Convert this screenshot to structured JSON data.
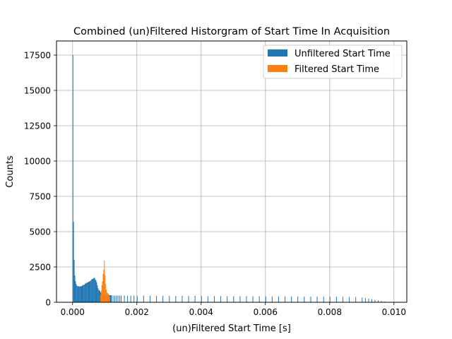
{
  "chart_data": {
    "type": "bar",
    "title": "Combined (un)Filtered Historgram of Start Time In Acquisition",
    "xlabel": "(un)Filtered Start Time [s]",
    "ylabel": "Counts",
    "xlim": [
      -0.0005,
      0.0104
    ],
    "ylim": [
      0,
      18500
    ],
    "xticks": [
      0.0,
      0.002,
      0.004,
      0.006,
      0.008,
      0.01
    ],
    "xtick_labels": [
      "0.000",
      "0.002",
      "0.004",
      "0.006",
      "0.008",
      "0.010"
    ],
    "yticks": [
      0,
      2500,
      5000,
      7500,
      10000,
      12500,
      15000,
      17500
    ],
    "ytick_labels": [
      "0",
      "2500",
      "5000",
      "7500",
      "10000",
      "12500",
      "15000",
      "17500"
    ],
    "grid": true,
    "legend_position": "top-right",
    "bin_width": 2e-05,
    "series": [
      {
        "name": "Unfiltered Start Time",
        "color": "#1f77b4",
        "x": [
          0.0,
          2e-05,
          4e-05,
          6e-05,
          8e-05,
          0.0001,
          0.00012,
          0.00014,
          0.00016,
          0.00018,
          0.0002,
          0.00022,
          0.00024,
          0.00026,
          0.00028,
          0.0003,
          0.00032,
          0.00034,
          0.00036,
          0.00038,
          0.0004,
          0.00042,
          0.00044,
          0.00046,
          0.00048,
          0.0005,
          0.00052,
          0.00054,
          0.00056,
          0.00058,
          0.0006,
          0.00062,
          0.00064,
          0.00066,
          0.00068,
          0.0007,
          0.00072,
          0.00074,
          0.00076,
          0.00078,
          0.0008,
          0.00082,
          0.00084,
          0.00086,
          0.00088,
          0.0009,
          0.00092,
          0.00094,
          0.00096,
          0.00098,
          0.001,
          0.00102,
          0.00104,
          0.00106,
          0.00108,
          0.0011,
          0.00112,
          0.00114,
          0.00116,
          0.00118,
          0.0012,
          0.00125,
          0.0013,
          0.00135,
          0.0014,
          0.00145,
          0.0015,
          0.0016,
          0.0017,
          0.0018,
          0.0019,
          0.002,
          0.0022,
          0.0024,
          0.0026,
          0.0028,
          0.003,
          0.0032,
          0.0034,
          0.0036,
          0.0038,
          0.004,
          0.0042,
          0.0044,
          0.0046,
          0.0048,
          0.005,
          0.0052,
          0.0054,
          0.0056,
          0.0058,
          0.006,
          0.0062,
          0.0064,
          0.0066,
          0.0068,
          0.007,
          0.0072,
          0.0074,
          0.0076,
          0.0078,
          0.008,
          0.0082,
          0.0084,
          0.0086,
          0.0088,
          0.009,
          0.0091,
          0.0092,
          0.0093,
          0.0094,
          0.0095,
          0.0096,
          0.0097,
          0.0098
        ],
        "values": [
          17500,
          5700,
          3000,
          1900,
          1500,
          1300,
          1200,
          1150,
          1100,
          1150,
          1100,
          1150,
          1100,
          1150,
          1150,
          1200,
          1250,
          1200,
          1250,
          1300,
          1350,
          1350,
          1400,
          1400,
          1450,
          1450,
          1500,
          1500,
          1550,
          1600,
          1650,
          1650,
          1700,
          1750,
          1700,
          1600,
          1550,
          1400,
          1200,
          1000,
          900,
          850,
          800,
          700,
          650,
          600,
          550,
          550,
          500,
          500,
          500,
          500,
          500,
          500,
          500,
          500,
          500,
          500,
          500,
          500,
          500,
          480,
          480,
          480,
          480,
          480,
          480,
          470,
          470,
          470,
          470,
          470,
          470,
          460,
          460,
          460,
          450,
          450,
          450,
          450,
          450,
          440,
          440,
          440,
          440,
          440,
          430,
          430,
          430,
          430,
          430,
          420,
          420,
          420,
          420,
          420,
          420,
          410,
          410,
          410,
          410,
          400,
          400,
          390,
          380,
          370,
          340,
          300,
          260,
          220,
          180,
          130,
          90,
          50,
          20
        ]
      },
      {
        "name": "Filtered Start Time",
        "color": "#ff7f0e",
        "x": [
          0.00086,
          0.00088,
          0.0009,
          0.00092,
          0.00094,
          0.00096,
          0.00098,
          0.001,
          0.00102,
          0.00104,
          0.00106,
          0.00108,
          0.0011,
          0.00112,
          0.00114
        ],
        "values": [
          500,
          800,
          1200,
          1500,
          2000,
          2300,
          2950,
          1900,
          1300,
          900,
          700,
          650,
          600,
          500,
          400
        ]
      }
    ]
  }
}
